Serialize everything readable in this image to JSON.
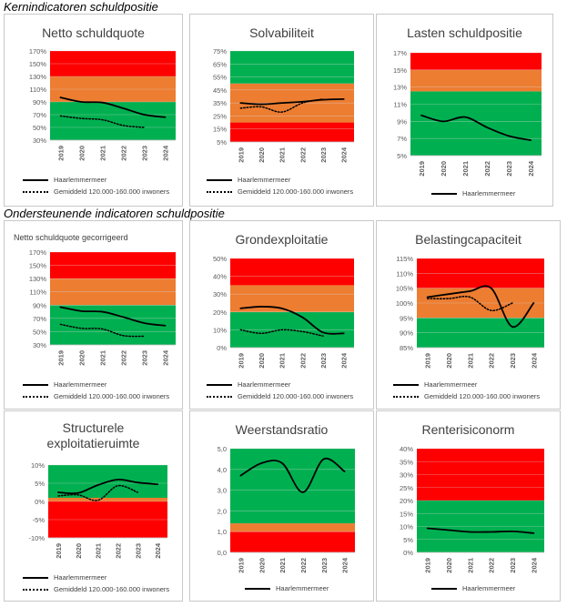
{
  "sections": [
    {
      "title": "Kernindicatoren schuldpositie"
    },
    {
      "title": "Ondersteunende indicatoren schuldpositie"
    }
  ],
  "legend_labels": {
    "municipality": "Haarlemmermeer",
    "average": "Gemiddeld 120.000-160.000 inwoners"
  },
  "colors": {
    "red": "#ff0000",
    "orange": "#ed7d31",
    "green": "#00b050",
    "axis_text": "#595959",
    "grid": "#d9d9d9"
  },
  "chart_data": [
    {
      "type": "line",
      "title": "Netto schuldquote",
      "title_small": false,
      "x": [
        "2019",
        "2020",
        "2021",
        "2022",
        "2023",
        "2024"
      ],
      "ylim": [
        30,
        170
      ],
      "yticks": [
        30,
        50,
        70,
        90,
        110,
        130,
        150,
        170
      ],
      "ytick_labels": [
        "30%",
        "50%",
        "70%",
        "90%",
        "110%",
        "130%",
        "150%",
        "170%"
      ],
      "bands": [
        {
          "from": 30,
          "to": 90,
          "color": "green"
        },
        {
          "from": 90,
          "to": 130,
          "color": "orange"
        },
        {
          "from": 130,
          "to": 170,
          "color": "red"
        }
      ],
      "series": [
        {
          "name": "Haarlemmermeer",
          "style": "solid",
          "x": [
            0,
            1,
            2,
            3,
            4,
            5
          ],
          "values": [
            97,
            90,
            89,
            80,
            70,
            66
          ]
        },
        {
          "name": "Gemiddeld 120.000-160.000 inwoners",
          "style": "dot",
          "x": [
            0,
            1,
            2,
            3,
            4
          ],
          "values": [
            68,
            64,
            62,
            53,
            50
          ]
        }
      ],
      "legend": [
        "municipality",
        "average"
      ]
    },
    {
      "type": "line",
      "title": "Solvabiliteit",
      "title_small": false,
      "x": [
        "2019",
        "2020",
        "2021",
        "2022",
        "2023",
        "2024"
      ],
      "ylim": [
        5,
        75
      ],
      "yticks": [
        5,
        15,
        25,
        35,
        45,
        55,
        65,
        75
      ],
      "ytick_labels": [
        "5%",
        "15%",
        "25%",
        "35%",
        "45%",
        "55%",
        "65%",
        "75%"
      ],
      "bands": [
        {
          "from": 5,
          "to": 20,
          "color": "red"
        },
        {
          "from": 20,
          "to": 50,
          "color": "orange"
        },
        {
          "from": 50,
          "to": 75,
          "color": "green"
        }
      ],
      "series": [
        {
          "name": "Haarlemmermeer",
          "style": "solid",
          "x": [
            0,
            1,
            2,
            3,
            4,
            5
          ],
          "values": [
            35,
            34,
            35,
            36,
            37.5,
            38
          ]
        },
        {
          "name": "Gemiddeld 120.000-160.000 inwoners",
          "style": "dot",
          "x": [
            0,
            1,
            2,
            3,
            4
          ],
          "values": [
            31,
            32,
            28,
            35,
            38
          ]
        }
      ],
      "legend": [
        "municipality",
        "average"
      ]
    },
    {
      "type": "line",
      "title": "Lasten schuldpositie",
      "title_small": false,
      "x": [
        "2019",
        "2020",
        "2021",
        "2022",
        "2023",
        "2024"
      ],
      "ylim": [
        5,
        17
      ],
      "yticks": [
        5,
        7,
        9,
        11,
        13,
        15,
        17
      ],
      "ytick_labels": [
        "5%",
        "7%",
        "9%",
        "11%",
        "13%",
        "15%",
        "17%"
      ],
      "bands": [
        {
          "from": 5,
          "to": 12.5,
          "color": "green"
        },
        {
          "from": 12.5,
          "to": 15,
          "color": "orange"
        },
        {
          "from": 15,
          "to": 17.5,
          "color": "red"
        }
      ],
      "series": [
        {
          "name": "Haarlemmermeer",
          "style": "solid",
          "x": [
            0,
            1,
            2,
            3,
            4,
            5
          ],
          "values": [
            9.7,
            9.0,
            9.5,
            8.3,
            7.3,
            6.8
          ]
        }
      ],
      "legend": [
        "municipality"
      ]
    },
    {
      "type": "line",
      "title": "Netto schuldquote gecorrigeerd",
      "title_small": true,
      "x": [
        "2019",
        "2020",
        "2021",
        "2022",
        "2023",
        "2024"
      ],
      "ylim": [
        30,
        170
      ],
      "yticks": [
        30,
        50,
        70,
        90,
        110,
        130,
        150,
        170
      ],
      "ytick_labels": [
        "30%",
        "50%",
        "70%",
        "90%",
        "110%",
        "130%",
        "150%",
        "170%"
      ],
      "bands": [
        {
          "from": 30,
          "to": 90,
          "color": "green"
        },
        {
          "from": 90,
          "to": 130,
          "color": "orange"
        },
        {
          "from": 130,
          "to": 170,
          "color": "red"
        }
      ],
      "series": [
        {
          "name": "Haarlemmermeer",
          "style": "solid",
          "x": [
            0,
            1,
            2,
            3,
            4,
            5
          ],
          "values": [
            87,
            81,
            80,
            72,
            63,
            59
          ]
        },
        {
          "name": "Gemiddeld 120.000-160.000 inwoners",
          "style": "dot",
          "x": [
            0,
            1,
            2,
            3,
            4
          ],
          "values": [
            61,
            55,
            54,
            44,
            43
          ]
        }
      ],
      "legend": [
        "municipality",
        "average"
      ]
    },
    {
      "type": "line",
      "title": "Grondexploitatie",
      "title_small": false,
      "x": [
        "2019",
        "2020",
        "2021",
        "2022",
        "2023",
        "2024"
      ],
      "ylim": [
        0,
        50
      ],
      "yticks": [
        0,
        10,
        20,
        30,
        40,
        50
      ],
      "ytick_labels": [
        "0%",
        "10%",
        "20%",
        "30%",
        "40%",
        "50%"
      ],
      "bands": [
        {
          "from": 0,
          "to": 20,
          "color": "green"
        },
        {
          "from": 20,
          "to": 35,
          "color": "orange"
        },
        {
          "from": 35,
          "to": 50,
          "color": "red"
        }
      ],
      "series": [
        {
          "name": "Haarlemmermeer",
          "style": "solid",
          "x": [
            0,
            1,
            2,
            3,
            4,
            5
          ],
          "values": [
            22,
            23,
            22,
            17,
            8.5,
            8
          ]
        },
        {
          "name": "Gemiddeld 120.000-160.000 inwoners",
          "style": "dot",
          "x": [
            0,
            1,
            2,
            3,
            4
          ],
          "values": [
            10,
            8,
            10,
            9,
            6.5
          ]
        }
      ],
      "legend": [
        "municipality",
        "average"
      ]
    },
    {
      "type": "line",
      "title": "Belastingcapaciteit",
      "title_small": false,
      "x": [
        "2019",
        "2020",
        "2021",
        "2022",
        "2023",
        "2024"
      ],
      "ylim": [
        85,
        115
      ],
      "yticks": [
        85,
        90,
        95,
        100,
        105,
        110,
        115
      ],
      "ytick_labels": [
        "85%",
        "90%",
        "95%",
        "100%",
        "105%",
        "110%",
        "115%"
      ],
      "bands": [
        {
          "from": 85,
          "to": 95,
          "color": "green"
        },
        {
          "from": 95,
          "to": 105,
          "color": "orange"
        },
        {
          "from": 105,
          "to": 115,
          "color": "red"
        }
      ],
      "series": [
        {
          "name": "Haarlemmermeer",
          "style": "solid",
          "x": [
            0,
            1,
            2,
            3,
            4,
            5
          ],
          "values": [
            102,
            103,
            104,
            105,
            92,
            100
          ]
        },
        {
          "name": "Gemiddeld 120.000-160.000 inwoners",
          "style": "dot",
          "x": [
            0,
            1,
            2,
            3,
            4
          ],
          "values": [
            101.5,
            101.5,
            102,
            97.5,
            100
          ]
        }
      ],
      "legend": [
        "municipality",
        "average"
      ]
    },
    {
      "type": "line",
      "title": "Structurele exploitatieruimte",
      "title_small": false,
      "title_two_line": true,
      "x": [
        "2019",
        "2020",
        "2021",
        "2022",
        "2023",
        "2024"
      ],
      "ylim": [
        -10,
        10
      ],
      "yticks": [
        -10,
        -5,
        0,
        5,
        10
      ],
      "ytick_labels": [
        "-10%",
        "-5%",
        "0%",
        "5%",
        "10%"
      ],
      "bands": [
        {
          "from": -10,
          "to": 0,
          "color": "red"
        },
        {
          "from": 0,
          "to": 1,
          "color": "orange"
        },
        {
          "from": 1,
          "to": 10,
          "color": "green"
        }
      ],
      "series": [
        {
          "name": "Haarlemmermeer",
          "style": "solid",
          "x": [
            0,
            1,
            2,
            3,
            4,
            5
          ],
          "values": [
            2.5,
            2.3,
            4.5,
            6,
            5.2,
            4.7
          ]
        },
        {
          "name": "Gemiddeld 120.000-160.000 inwoners",
          "style": "dot",
          "x": [
            0,
            1,
            2,
            3,
            4
          ],
          "values": [
            1.5,
            1.8,
            0.3,
            4.3,
            2.5
          ]
        }
      ],
      "legend": [
        "municipality",
        "average"
      ]
    },
    {
      "type": "line",
      "title": "Weerstandsratio",
      "title_small": false,
      "x": [
        "2019",
        "2020",
        "2021",
        "2022",
        "2023",
        "2024"
      ],
      "ylim": [
        0,
        5
      ],
      "yticks": [
        0,
        1,
        2,
        3,
        4,
        5
      ],
      "ytick_labels": [
        "0,0",
        "1,0",
        "2,0",
        "3,0",
        "4,0",
        "5,0"
      ],
      "bands": [
        {
          "from": 0,
          "to": 1,
          "color": "red"
        },
        {
          "from": 1,
          "to": 1.4,
          "color": "orange"
        },
        {
          "from": 1.4,
          "to": 5,
          "color": "green"
        }
      ],
      "series": [
        {
          "name": "Haarlemmermeer",
          "style": "solid",
          "x": [
            0,
            1,
            2,
            3,
            4,
            5
          ],
          "values": [
            3.7,
            4.3,
            4.3,
            2.9,
            4.5,
            3.9
          ]
        }
      ],
      "legend": [
        "municipality"
      ]
    },
    {
      "type": "line",
      "title": "Renterisiconorm",
      "title_small": false,
      "x": [
        "2019",
        "2020",
        "2021",
        "2022",
        "2023",
        "2024"
      ],
      "ylim": [
        0,
        40
      ],
      "yticks": [
        0,
        5,
        10,
        15,
        20,
        25,
        30,
        35,
        40
      ],
      "ytick_labels": [
        "0%",
        "5%",
        "10%",
        "15%",
        "20%",
        "25%",
        "30%",
        "35%",
        "40%"
      ],
      "bands": [
        {
          "from": 0,
          "to": 20,
          "color": "green"
        },
        {
          "from": 20,
          "to": 40,
          "color": "red"
        }
      ],
      "series": [
        {
          "name": "Haarlemmermeer",
          "style": "solid",
          "x": [
            0,
            1,
            2,
            3,
            4,
            5
          ],
          "values": [
            9.3,
            8.6,
            7.9,
            7.9,
            8.1,
            7.4
          ]
        }
      ],
      "legend": [
        "municipality"
      ]
    }
  ]
}
